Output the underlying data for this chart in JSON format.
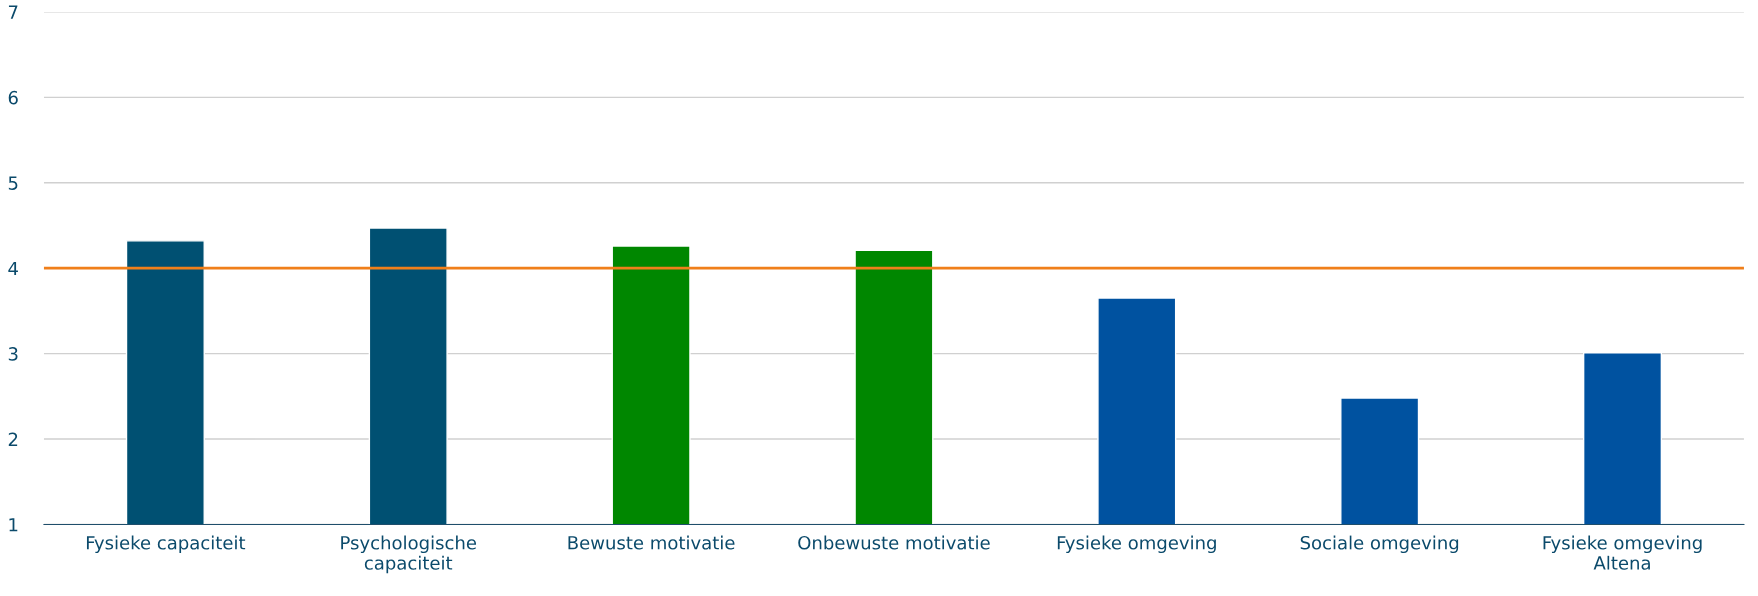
{
  "chart_data": {
    "type": "bar",
    "categories": [
      "Fysieke capaciteit",
      "Psychologische\ncapaciteit",
      "Bewuste motivatie",
      "Onbewuste motivatie",
      "Fysieke omgeving",
      "Sociale omgeving",
      "Fysieke omgeving\nAltena"
    ],
    "values": [
      4.32,
      4.47,
      4.26,
      4.21,
      3.65,
      2.48,
      3.01
    ],
    "colors": [
      "#005072",
      "#005072",
      "#008700",
      "#008700",
      "#0052a0",
      "#0052a0",
      "#0052a0"
    ],
    "ylim": [
      1,
      7
    ],
    "yticks": [
      1,
      2,
      3,
      4,
      5,
      6,
      7
    ],
    "grid": "y",
    "legend": false,
    "ref_lines": [
      {
        "axis": "y",
        "value": 4,
        "color": "#f07f1a"
      }
    ]
  }
}
